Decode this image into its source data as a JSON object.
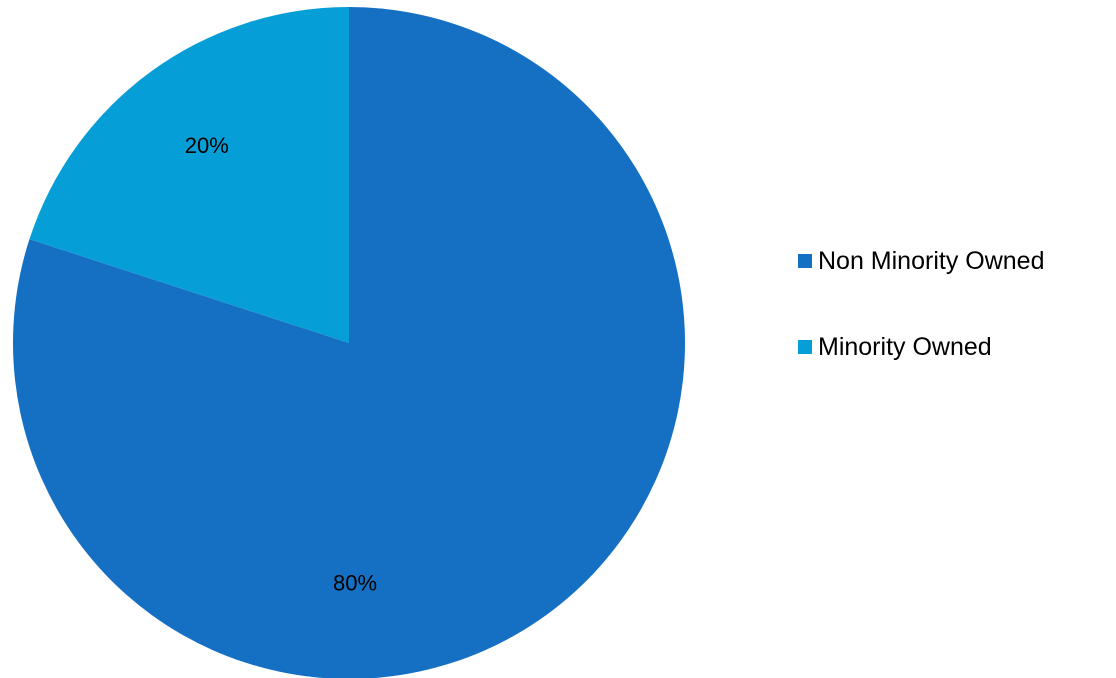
{
  "chart_data": {
    "type": "pie",
    "title": "",
    "start_angle_deg": 0,
    "direction": "clockwise",
    "slices": [
      {
        "label": "Non Minority Owned",
        "value": 80,
        "display": "80%",
        "color": "#1570C4"
      },
      {
        "label": "Minority Owned",
        "value": 20,
        "display": "20%",
        "color": "#069ED6"
      }
    ],
    "legend_position": "right"
  }
}
